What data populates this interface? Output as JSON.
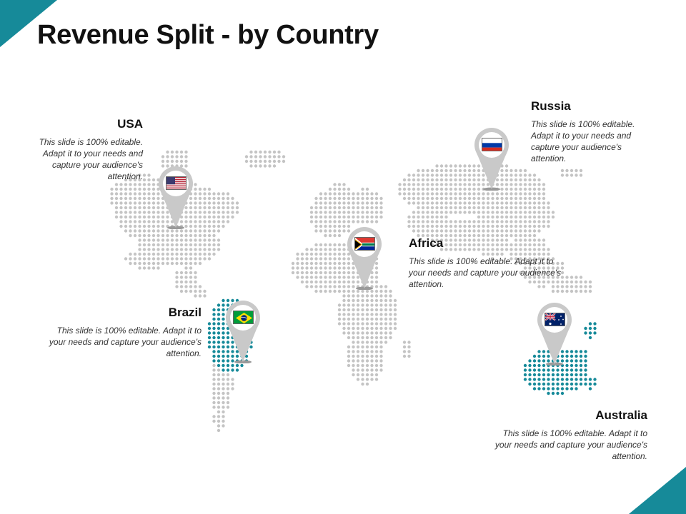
{
  "title": "Revenue Split - by Country",
  "colors": {
    "accent": "#168a99",
    "dot_gray": "#c4c4c4",
    "dot_highlight": "#168a99",
    "pin_gray": "#c9c9c9"
  },
  "countries": [
    {
      "name": "USA",
      "description": "This slide is 100% editable. Adapt it to your needs and capture your audience's attention.",
      "flag": "usa-flag-icon",
      "highlighted": false
    },
    {
      "name": "Russia",
      "description": "This slide is 100% editable. Adapt it to your needs and capture your audience's attention.",
      "flag": "russia-flag-icon",
      "highlighted": false
    },
    {
      "name": "Africa",
      "description": "This slide is 100% editable. Adapt it to your needs and capture your audience's attention.",
      "flag": "south-africa-flag-icon",
      "highlighted": false
    },
    {
      "name": "Brazil",
      "description": "This slide is 100% editable. Adapt it to your needs and capture your audience's attention.",
      "flag": "brazil-flag-icon",
      "highlighted": true
    },
    {
      "name": "Australia",
      "description": "This slide is 100% editable. Adapt it to your needs and capture your audience's attention.",
      "flag": "australia-flag-icon",
      "highlighted": true
    }
  ]
}
